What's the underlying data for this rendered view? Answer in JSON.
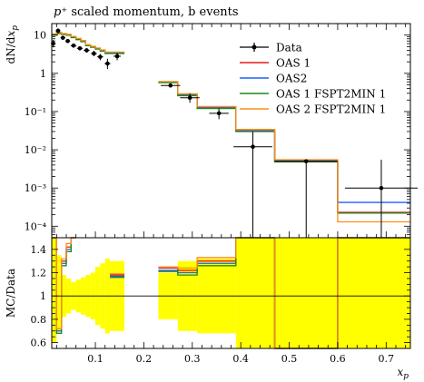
{
  "chart_data": [
    {
      "panel": "main",
      "type": "line",
      "title": "p⁺ scaled momentum, b events",
      "ylabel": "dN/dx_p",
      "xlabel": "x_p",
      "yscale": "log",
      "xlim": [
        0.01,
        0.75
      ],
      "ylim": [
        5e-05,
        20
      ],
      "ytick_labels": [
        "10",
        "1",
        "10⁻¹",
        "10⁻²",
        "10⁻³",
        "10⁻⁴"
      ],
      "legend_position": "top-right",
      "series": [
        {
          "name": "Data",
          "color": "#000000",
          "style": "points",
          "points": [
            {
              "x": 0.013,
              "y": 6.0,
              "ylo": 4.8,
              "yhi": 7.5
            },
            {
              "x": 0.023,
              "y": 13.0,
              "ylo": 11.0,
              "yhi": 15.0
            },
            {
              "x": 0.033,
              "y": 8.5,
              "ylo": 7.6,
              "yhi": 9.5
            },
            {
              "x": 0.043,
              "y": 7.0,
              "ylo": 6.3,
              "yhi": 7.8
            },
            {
              "x": 0.055,
              "y": 5.3,
              "ylo": 4.7,
              "yhi": 6.0
            },
            {
              "x": 0.068,
              "y": 4.5,
              "ylo": 4.0,
              "yhi": 5.0
            },
            {
              "x": 0.082,
              "y": 4.0,
              "ylo": 3.5,
              "yhi": 4.5
            },
            {
              "x": 0.097,
              "y": 3.3,
              "ylo": 2.8,
              "yhi": 3.9
            },
            {
              "x": 0.11,
              "y": 2.7,
              "ylo": 2.2,
              "yhi": 3.2
            },
            {
              "x": 0.125,
              "y": 1.8,
              "ylo": 1.3,
              "yhi": 2.4
            },
            {
              "x": 0.145,
              "y": 2.8,
              "ylo": 2.2,
              "yhi": 3.4
            },
            {
              "x": 0.255,
              "y": 0.48,
              "ylo": 0.43,
              "yhi": 0.54
            },
            {
              "x": 0.295,
              "y": 0.23,
              "ylo": 0.17,
              "yhi": 0.3
            },
            {
              "x": 0.355,
              "y": 0.09,
              "ylo": 0.063,
              "yhi": 0.12
            },
            {
              "x": 0.425,
              "y": 0.012,
              "ylo": 5e-05,
              "yhi": 0.03
            },
            {
              "x": 0.535,
              "y": 0.005,
              "ylo": 5e-05,
              "yhi": 0.0055
            },
            {
              "x": 0.69,
              "y": 0.001,
              "ylo": 5e-05,
              "yhi": 0.0055
            }
          ]
        },
        {
          "name": "OAS 1",
          "color": "#e31a1c",
          "style": "step",
          "edges": [
            0.01,
            0.02,
            0.03,
            0.04,
            0.05,
            0.06,
            0.07,
            0.08,
            0.09,
            0.1,
            0.11,
            0.12,
            0.13,
            0.16,
            0.23,
            0.27,
            0.31,
            0.39,
            0.47,
            0.6,
            0.75
          ],
          "values": [
            10.5,
            11.5,
            10.8,
            10.3,
            9.0,
            8.0,
            7.0,
            5.5,
            5.0,
            4.5,
            4.0,
            3.5,
            3.5,
            null,
            0.6,
            0.28,
            0.13,
            0.033,
            0.0052,
            0.00023
          ]
        },
        {
          "name": "OAS2",
          "color": "#1f5fff",
          "style": "step",
          "edges": [
            0.01,
            0.02,
            0.03,
            0.04,
            0.05,
            0.06,
            0.07,
            0.08,
            0.09,
            0.1,
            0.11,
            0.12,
            0.13,
            0.16,
            0.23,
            0.27,
            0.31,
            0.39,
            0.47,
            0.6,
            0.75
          ],
          "values": [
            10.2,
            11.3,
            10.6,
            10.1,
            8.8,
            7.8,
            6.9,
            5.4,
            4.9,
            4.4,
            3.9,
            3.4,
            3.4,
            null,
            0.58,
            0.27,
            0.125,
            0.031,
            0.0051,
            0.00042
          ]
        },
        {
          "name": "OAS 1 FSPT2MIN 1",
          "color": "#1a8a1a",
          "style": "step",
          "edges": [
            0.01,
            0.02,
            0.03,
            0.04,
            0.05,
            0.06,
            0.07,
            0.08,
            0.09,
            0.1,
            0.11,
            0.12,
            0.13,
            0.16,
            0.23,
            0.27,
            0.31,
            0.39,
            0.47,
            0.6,
            0.75
          ],
          "values": [
            10.0,
            11.0,
            10.4,
            9.9,
            8.6,
            7.6,
            6.7,
            5.3,
            4.8,
            4.3,
            3.8,
            3.3,
            3.3,
            null,
            0.57,
            0.26,
            0.12,
            0.03,
            0.0048,
            0.00022
          ]
        },
        {
          "name": "OAS 2 FSPT2MIN 1",
          "color": "#ff8c1a",
          "style": "step",
          "edges": [
            0.01,
            0.02,
            0.03,
            0.04,
            0.05,
            0.06,
            0.07,
            0.08,
            0.09,
            0.1,
            0.11,
            0.12,
            0.13,
            0.16,
            0.23,
            0.27,
            0.31,
            0.39,
            0.47,
            0.6,
            0.75
          ],
          "values": [
            10.8,
            11.8,
            11.0,
            10.5,
            9.2,
            8.2,
            7.2,
            5.6,
            5.1,
            4.6,
            4.1,
            3.6,
            3.6,
            null,
            0.61,
            0.29,
            0.135,
            0.034,
            0.0055,
            0.00013
          ]
        }
      ]
    },
    {
      "panel": "ratio",
      "type": "line",
      "ylabel": "MC/Data",
      "xlabel": "x_p",
      "xlim": [
        0.01,
        0.75
      ],
      "ylim": [
        0.55,
        1.5
      ],
      "yticks": [
        0.6,
        0.8,
        1,
        1.2,
        1.4
      ],
      "ytick_labels": [
        "0.6",
        "0.8",
        "1",
        "1.2",
        "1.4"
      ],
      "xticks": [
        0.1,
        0.2,
        0.3,
        0.4,
        0.5,
        0.6,
        0.7
      ],
      "xtick_labels": [
        "0.1",
        "0.2",
        "0.3",
        "0.4",
        "0.5",
        "0.6",
        "0.7"
      ],
      "uncertainty_band": {
        "color": "#ffff00",
        "edges": [
          0.01,
          0.02,
          0.03,
          0.04,
          0.05,
          0.06,
          0.07,
          0.08,
          0.09,
          0.1,
          0.11,
          0.12,
          0.13,
          0.16,
          0.23,
          0.27,
          0.31,
          0.39,
          0.47,
          0.6,
          0.75
        ],
        "lo": [
          0.6,
          0.7,
          0.82,
          0.85,
          0.88,
          0.86,
          0.84,
          0.82,
          0.8,
          0.75,
          0.72,
          0.68,
          0.7,
          null,
          0.8,
          0.7,
          0.68,
          0.55,
          0.55,
          0.55
        ],
        "hi": [
          1.5,
          1.35,
          1.18,
          1.15,
          1.12,
          1.14,
          1.16,
          1.18,
          1.2,
          1.25,
          1.28,
          1.32,
          1.3,
          null,
          1.2,
          1.3,
          1.32,
          1.5,
          1.5,
          1.5
        ]
      },
      "series": [
        {
          "name": "OAS 1",
          "color": "#e31a1c",
          "values": [
            1.5,
            0.7,
            1.3,
            1.42,
            1.5,
            null,
            null,
            null,
            null,
            null,
            null,
            null,
            1.18,
            null,
            1.24,
            1.22,
            1.3,
            1.5,
            0.55,
            1.5
          ]
        },
        {
          "name": "OAS2",
          "color": "#1f5fff",
          "values": [
            1.5,
            0.7,
            1.28,
            1.4,
            1.5,
            null,
            null,
            null,
            null,
            null,
            null,
            null,
            1.17,
            null,
            1.22,
            1.2,
            1.28,
            1.5,
            0.55,
            1.5
          ]
        },
        {
          "name": "OAS 1 FSPT2MIN 1",
          "color": "#1a8a1a",
          "values": [
            1.5,
            0.68,
            1.26,
            1.38,
            1.5,
            null,
            null,
            null,
            null,
            null,
            null,
            null,
            1.16,
            null,
            1.21,
            1.18,
            1.26,
            1.5,
            0.55,
            1.5
          ]
        },
        {
          "name": "OAS 2 FSPT2MIN 1",
          "color": "#ff8c1a",
          "values": [
            1.5,
            0.72,
            1.32,
            1.45,
            1.5,
            null,
            null,
            null,
            null,
            null,
            null,
            null,
            1.19,
            null,
            1.25,
            1.24,
            1.33,
            1.5,
            0.55,
            1.5
          ]
        }
      ]
    }
  ]
}
